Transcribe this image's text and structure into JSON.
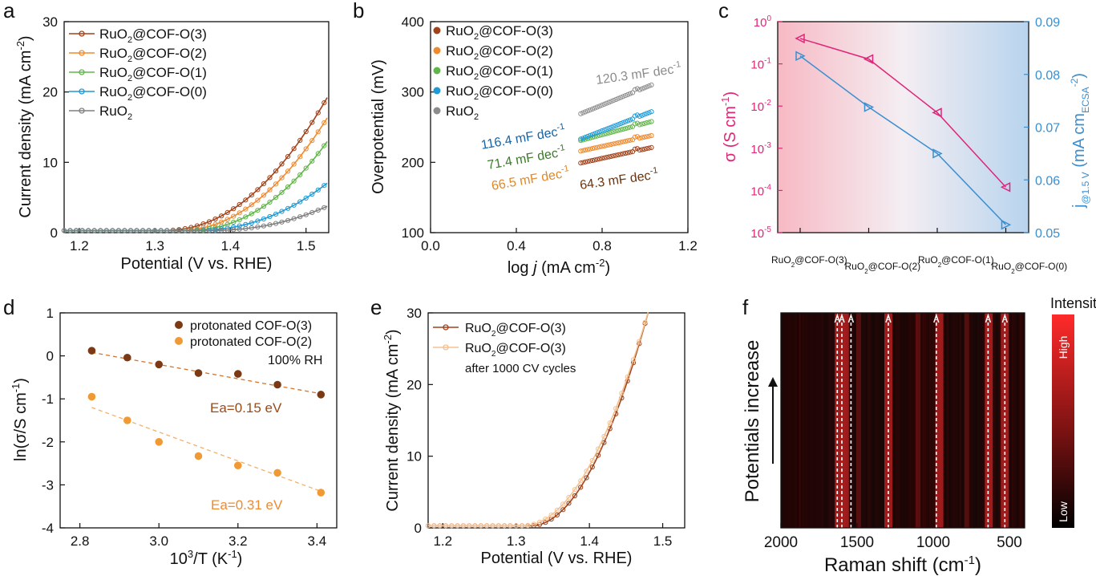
{
  "panels": {
    "a": {
      "letter": "a",
      "xlabel": "Potential (V vs. RHE)",
      "ylabel_main": "Current density (mA cm",
      "ylabel_sup": "-2",
      "ylabel_end": ")",
      "xticks": [
        "1.2",
        "1.3",
        "1.4",
        "1.5"
      ],
      "yticks": [
        "0",
        "10",
        "20",
        "30"
      ],
      "legend": [
        {
          "main": "RuO",
          "sub": "2",
          "rest": "@COF-O(3)"
        },
        {
          "main": "RuO",
          "sub": "2",
          "rest": "@COF-O(2)"
        },
        {
          "main": "RuO",
          "sub": "2",
          "rest": "@COF-O(1)"
        },
        {
          "main": "RuO",
          "sub": "2",
          "rest": "@COF-O(0)"
        },
        {
          "main": "RuO",
          "sub": "2",
          "rest": ""
        }
      ]
    },
    "b": {
      "letter": "b",
      "xlabel_pre": "log ",
      "xlabel_it": "j",
      "xlabel_post": " (mA cm",
      "xlabel_sup": "-2",
      "xlabel_end": ")",
      "ylabel": "Overpotential (mV)",
      "xticks": [
        "0.0",
        "0.4",
        "0.8",
        "1.2"
      ],
      "yticks": [
        "100",
        "200",
        "300",
        "400"
      ],
      "legend": [
        {
          "main": "RuO",
          "sub": "2",
          "rest": "@COF-O(3)"
        },
        {
          "main": "RuO",
          "sub": "2",
          "rest": "@COF-O(2)"
        },
        {
          "main": "RuO",
          "sub": "2",
          "rest": "@COF-O(1)"
        },
        {
          "main": "RuO",
          "sub": "2",
          "rest": "@COF-O(0)"
        },
        {
          "main": "RuO",
          "sub": "2",
          "rest": ""
        }
      ],
      "annotations": [
        {
          "main": "120.3 mF dec",
          "sup": "-1",
          "color": "#8c8c8c"
        },
        {
          "main": "116.4 mF dec",
          "sup": "-1",
          "color": "#1565a8"
        },
        {
          "main": "71.4 mF dec",
          "sup": "-1",
          "color": "#3c7a2a"
        },
        {
          "main": "66.5 mF dec",
          "sup": "-1",
          "color": "#e0892b"
        },
        {
          "main": "64.3 mF dec",
          "sup": "-1",
          "color": "#6b3410"
        }
      ]
    },
    "c": {
      "letter": "c",
      "ylabel_left": "σ (S cm",
      "ylabel_left_sup": "-1",
      "ylabel_left_end": ")",
      "ylabel_right_pre": "j",
      "ylabel_right_sub": "@1.5 V",
      "ylabel_right_mid": " (mA cm",
      "ylabel_right_sub2": "ECSA",
      "ylabel_right_sup": "-2",
      "ylabel_right_end": ")",
      "yticks_left": [
        {
          "base": "10",
          "exp": "0"
        },
        {
          "base": "10",
          "exp": "-1"
        },
        {
          "base": "10",
          "exp": "-2"
        },
        {
          "base": "10",
          "exp": "-3"
        },
        {
          "base": "10",
          "exp": "-4"
        },
        {
          "base": "10",
          "exp": "-5"
        }
      ],
      "yticks_right": [
        "0.05",
        "0.06",
        "0.07",
        "0.08",
        "0.09"
      ],
      "xticks": [
        {
          "main": "RuO",
          "sub": "2",
          "rest": "@COF-O(3)"
        },
        {
          "main": "RuO",
          "sub": "2",
          "rest": "@COF-O(2)"
        },
        {
          "main": "RuO",
          "sub": "2",
          "rest": "@COF-O(1)"
        },
        {
          "main": "RuO",
          "sub": "2",
          "rest": "@COF-O(0)"
        }
      ]
    },
    "d": {
      "letter": "d",
      "xlabel_main": "10",
      "xlabel_sup": "3",
      "xlabel_rest": "/T (K",
      "xlabel_sup2": "-1",
      "xlabel_end": ")",
      "ylabel_main": "ln(σ/S cm",
      "ylabel_sup": "-1",
      "ylabel_end": ")",
      "xticks": [
        "2.8",
        "3.0",
        "3.2",
        "3.4"
      ],
      "yticks": [
        "1",
        "0",
        "-1",
        "-2",
        "-3",
        "-4"
      ],
      "legend": [
        "protonated COF-O(3)",
        "protonated COF-O(2)"
      ],
      "note": "100% RH",
      "ea1": "Ea=0.15 eV",
      "ea2": "Ea=0.31 eV"
    },
    "e": {
      "letter": "e",
      "xlabel": "Potential (V vs. RHE)",
      "ylabel_main": "Current density (mA cm",
      "ylabel_sup": "-2",
      "ylabel_end": ")",
      "xticks": [
        "1.2",
        "1.3",
        "1.4",
        "1.5"
      ],
      "yticks": [
        "0",
        "10",
        "20",
        "30"
      ],
      "legend": [
        {
          "main": "RuO",
          "sub": "2",
          "rest": "@COF-O(3)"
        },
        {
          "main": "RuO",
          "sub": "2",
          "rest": "@COF-O(3)"
        }
      ],
      "legend_note": "after 1000 CV cycles"
    },
    "f": {
      "letter": "f",
      "xlabel_main": "Raman shift (cm",
      "xlabel_sup": "-1",
      "xlabel_end": ")",
      "ylabel": "Potentials increase",
      "xticks": [
        "2000",
        "1500",
        "1000",
        "500"
      ],
      "colorbar_title": "Intensity",
      "colorbar_high": "High",
      "colorbar_low": "Low"
    }
  },
  "chart_data": [
    {
      "panel": "a",
      "type": "line",
      "xlim": [
        1.18,
        1.53
      ],
      "ylim": [
        0,
        30
      ],
      "series": [
        {
          "name": "RuO2@COF-O(3)",
          "color": "#a0421a",
          "onset": 1.31,
          "k": 500,
          "p": 2.15
        },
        {
          "name": "RuO2@COF-O(2)",
          "color": "#ef8a2e",
          "onset": 1.33,
          "k": 480,
          "p": 2.1
        },
        {
          "name": "RuO2@COF-O(1)",
          "color": "#62b54b",
          "onset": 1.34,
          "k": 500,
          "p": 2.2
        },
        {
          "name": "RuO2@COF-O(0)",
          "color": "#1e9ad6",
          "onset": 1.35,
          "k": 300,
          "p": 2.2
        },
        {
          "name": "RuO2",
          "color": "#7f7f7f",
          "onset": 1.37,
          "k": 200,
          "p": 2.2
        }
      ]
    },
    {
      "panel": "b",
      "type": "scatter",
      "xlim": [
        0,
        1.2
      ],
      "ylim": [
        100,
        400
      ],
      "series": [
        {
          "name": "RuO2@COF-O(3)",
          "color": "#a0421a",
          "x": [
            0.7,
            1.03
          ],
          "y": [
            199,
            221
          ]
        },
        {
          "name": "RuO2@COF-O(2)",
          "color": "#ef8a2e",
          "x": [
            0.7,
            1.03
          ],
          "y": [
            216,
            238
          ]
        },
        {
          "name": "RuO2@COF-O(1)",
          "color": "#62b54b",
          "x": [
            0.7,
            1.03
          ],
          "y": [
            231,
            258
          ]
        },
        {
          "name": "RuO2@COF-O(0)",
          "color": "#1e9ad6",
          "x": [
            0.7,
            1.03
          ],
          "y": [
            233,
            272
          ]
        },
        {
          "name": "RuO2",
          "color": "#8c8c8c",
          "x": [
            0.7,
            1.03
          ],
          "y": [
            269,
            310
          ]
        }
      ]
    },
    {
      "panel": "c",
      "type": "line",
      "categories": [
        "RuO2@COF-O(3)",
        "RuO2@COF-O(2)",
        "RuO2@COF-O(1)",
        "RuO2@COF-O(0)"
      ],
      "left": {
        "values": [
          0.4,
          0.13,
          0.007,
          0.00012
        ],
        "ylim": [
          1e-05,
          1
        ],
        "scale": "log",
        "color": "#e0267a"
      },
      "right": {
        "values": [
          0.0835,
          0.0738,
          0.065,
          0.0515
        ],
        "ylim": [
          0.05,
          0.09
        ],
        "color": "#3a8fd0"
      }
    },
    {
      "panel": "d",
      "type": "scatter",
      "xlim": [
        2.75,
        3.45
      ],
      "ylim": [
        -4,
        1
      ],
      "series": [
        {
          "name": "protonated COF-O(3)",
          "color": "#7b3a14",
          "x": [
            2.83,
            2.92,
            3.0,
            3.1,
            3.2,
            3.3,
            3.41
          ],
          "y": [
            0.12,
            -0.04,
            -0.2,
            -0.4,
            -0.42,
            -0.67,
            -0.9
          ]
        },
        {
          "name": "protonated COF-O(2)",
          "color": "#f09a35",
          "x": [
            2.83,
            2.92,
            3.0,
            3.1,
            3.2,
            3.3,
            3.41
          ],
          "y": [
            -0.95,
            -1.5,
            -2.0,
            -2.33,
            -2.55,
            -2.72,
            -3.18
          ]
        }
      ],
      "fits": [
        {
          "color": "#d0752e",
          "x": [
            2.83,
            3.41
          ],
          "y": [
            0.08,
            -0.88
          ]
        },
        {
          "color": "#f2b06a",
          "x": [
            2.83,
            3.41
          ],
          "y": [
            -1.2,
            -3.15
          ]
        }
      ]
    },
    {
      "panel": "e",
      "type": "line",
      "xlim": [
        1.18,
        1.53
      ],
      "ylim": [
        0,
        30
      ],
      "series": [
        {
          "name": "RuO2@COF-O(3)",
          "color": "#a0421a",
          "onset": 1.32,
          "k": 1160,
          "p": 2.0
        },
        {
          "name": "RuO2@COF-O(3) after 1000 CV cycles",
          "color": "#f6c08e",
          "onset": 1.31,
          "k": 1030,
          "p": 2.0
        }
      ]
    },
    {
      "panel": "f",
      "type": "heatmap",
      "xlim": [
        2000,
        400
      ],
      "bright_lines": [
        1620,
        1580,
        1295,
        960,
        635,
        530,
        1490,
        1100,
        780
      ],
      "marked_lines": [
        1630,
        1600,
        1540,
        1295,
        980,
        640,
        530
      ]
    }
  ]
}
